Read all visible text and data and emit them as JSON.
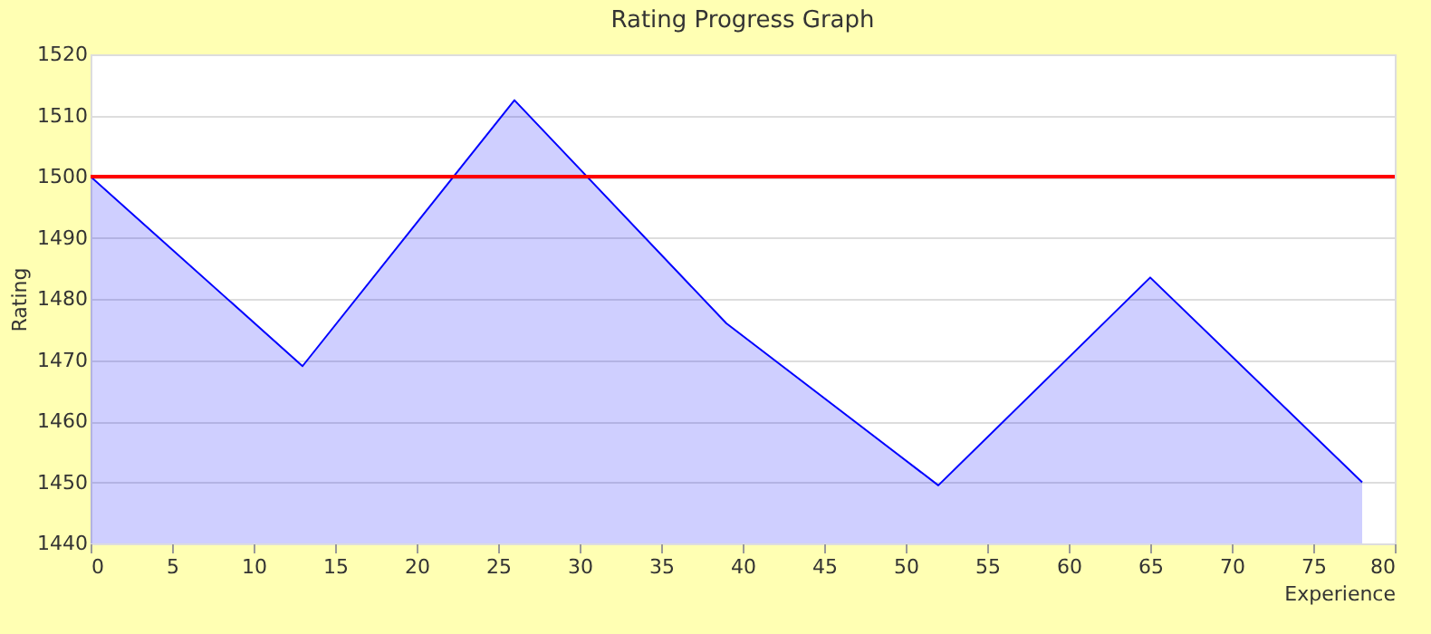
{
  "chart_data": {
    "type": "area",
    "title": "Rating Progress Graph",
    "xlabel": "Experience",
    "ylabel": "Rating",
    "x": [
      0,
      13,
      26,
      39,
      52,
      65,
      78
    ],
    "series": [
      {
        "color": "#0000ff",
        "values": [
          1500,
          1469,
          1512.5,
          1476,
          1449.5,
          1483.5,
          1450
        ]
      }
    ],
    "xlim": [
      0,
      80
    ],
    "xticks": [
      0,
      5,
      10,
      15,
      20,
      25,
      30,
      35,
      40,
      45,
      50,
      55,
      60,
      65,
      70,
      75,
      80
    ],
    "ylim": [
      1440,
      1520
    ],
    "yticks": [
      1440,
      1450,
      1460,
      1470,
      1480,
      1490,
      1500,
      1510,
      1520
    ],
    "ref_lines": [
      {
        "axis": "y",
        "value": 1500,
        "color": "#ff0000"
      }
    ],
    "grid": "y",
    "marker": "none",
    "line_style": "solid"
  }
}
